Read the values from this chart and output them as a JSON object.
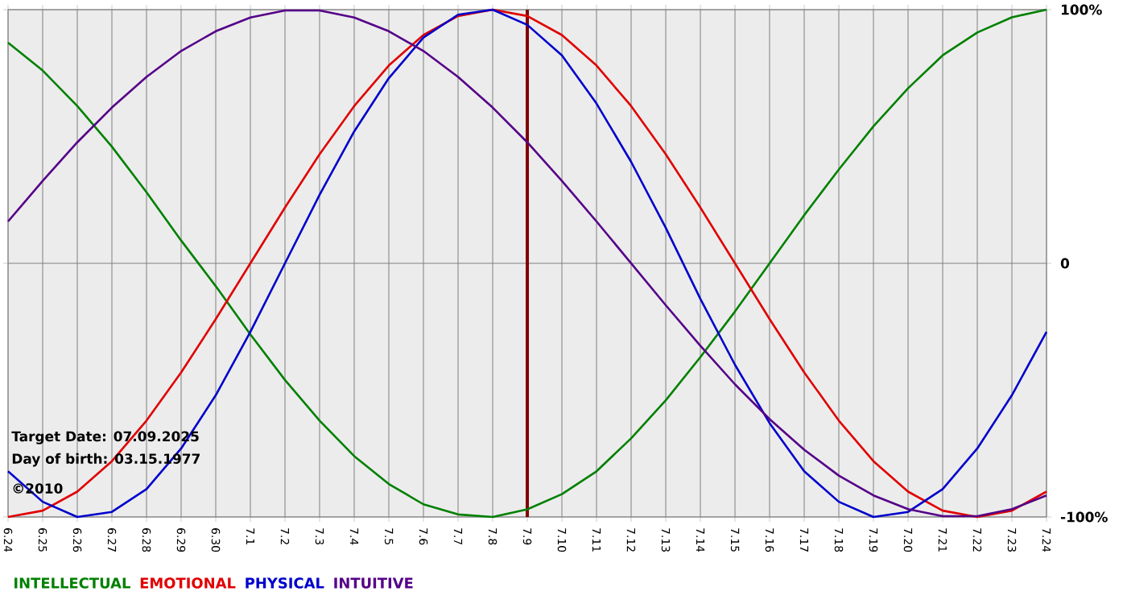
{
  "chart_data": {
    "type": "line",
    "categories": [
      "6.24",
      "6.25",
      "6.26",
      "6.27",
      "6.28",
      "6.29",
      "6.30",
      "7.1",
      "7.2",
      "7.3",
      "7.4",
      "7.5",
      "7.6",
      "7.7",
      "7.8",
      "7.9",
      "7.10",
      "7.11",
      "7.12",
      "7.13",
      "7.14",
      "7.15",
      "7.16",
      "7.17",
      "7.18",
      "7.19",
      "7.20",
      "7.21",
      "7.22",
      "7.23",
      "7.24"
    ],
    "series": [
      {
        "name": "INTELLECTUAL",
        "color": "#008000",
        "values": [
          87,
          76,
          62,
          46,
          28,
          9,
          -9,
          -28,
          -46,
          -62,
          -76,
          -87,
          -95,
          -99,
          -100,
          -97,
          -91,
          -82,
          -69,
          -54,
          -37,
          -19,
          0,
          19,
          37,
          54,
          69,
          82,
          91,
          97,
          100
        ]
      },
      {
        "name": "EMOTIONAL",
        "color": "#e00000",
        "values": [
          -100,
          -97.5,
          -90,
          -78,
          -62,
          -43,
          -22,
          0,
          22,
          43,
          62,
          78,
          90,
          97.5,
          100,
          97.5,
          90,
          78,
          62,
          43,
          22,
          0,
          -22,
          -43,
          -62,
          -78,
          -90,
          -97.5,
          -100,
          -97.5,
          -90
        ]
      },
      {
        "name": "PHYSICAL",
        "color": "#0000cc",
        "values": [
          -82,
          -94,
          -100,
          -98,
          -89,
          -73,
          -52,
          -27,
          0,
          27,
          52,
          73,
          89,
          98,
          100,
          94,
          82,
          63,
          40,
          14,
          -14,
          -40,
          -63,
          -82,
          -94,
          -100,
          -98,
          -89,
          -73,
          -52,
          -27
        ]
      },
      {
        "name": "INTUITIVE",
        "color": "#550088",
        "values": [
          16.5,
          32.5,
          47.7,
          61.4,
          73.5,
          83.7,
          91.5,
          96.9,
          99.7,
          99.7,
          96.9,
          91.5,
          83.7,
          73.5,
          61.4,
          47.7,
          32.5,
          16.5,
          0,
          -16.5,
          -32.5,
          -47.7,
          -61.4,
          -73.5,
          -83.7,
          -91.5,
          -96.9,
          -99.7,
          -99.7,
          -96.9,
          -91.5
        ]
      }
    ],
    "ylim": [
      -100,
      100
    ],
    "yticks": [
      {
        "value": -100,
        "label": "-100%"
      },
      0,
      {
        "value": 100,
        "label": "100%"
      }
    ],
    "grid": true,
    "legend": "bottom left",
    "marker": "none",
    "line_style": "solid",
    "ref_lines": [
      {
        "axis": "x",
        "value": "7.9",
        "color": "#800000"
      }
    ],
    "annotations": [
      "Target Date: 07.09.2025",
      "Day of birth: 03.15.1977",
      "©2010"
    ]
  }
}
